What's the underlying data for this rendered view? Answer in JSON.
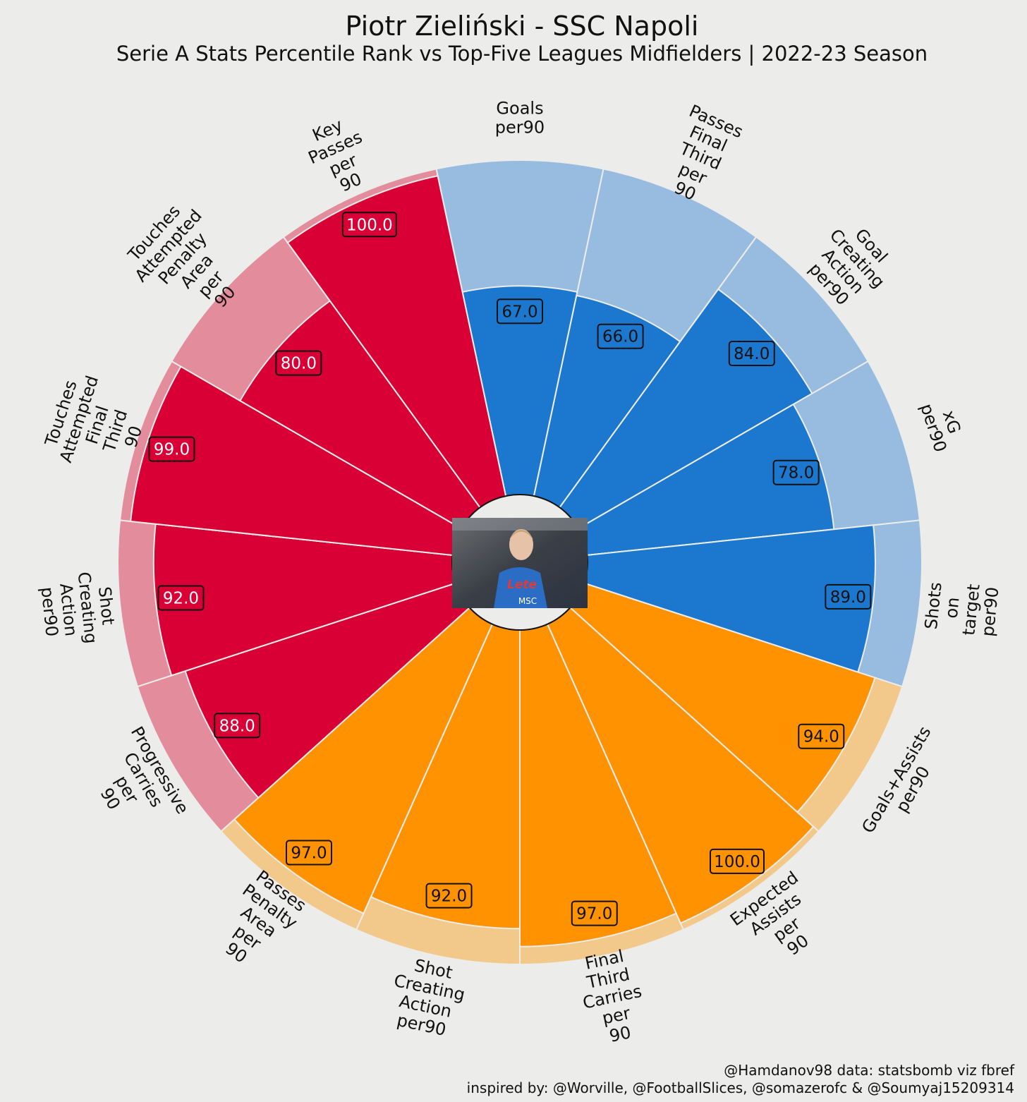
{
  "title": "Piotr Zieliński - SSC Napoli",
  "subtitle": "Serie A Stats Percentile Rank vs Top-Five Leagues  Midfielders | 2022-23 Season",
  "footer": {
    "line1": "@Hamdanov98 data: statsbomb viz fbref",
    "line2": "inspired by: @Worville, @FootballSlices, @somazerofc & @Soumyaj15209314"
  },
  "center_photo": {
    "description": "player-photo",
    "shirt_text": "Lete",
    "sponsor_text": "MSC"
  },
  "colors": {
    "background": "#ececea",
    "attacking": "#1b78ce",
    "attacking_light": "#97bcdf",
    "possession": "#d80034",
    "possession_light": "#e38c9c",
    "creation": "#ff9200",
    "creation_light": "#f2c98a"
  },
  "chart_data": {
    "type": "pizza",
    "max": 100,
    "slices": [
      {
        "label": "Goals\nper90",
        "value": 67.0,
        "value_text": "67.0",
        "group": "attacking"
      },
      {
        "label": "Passes\nFinal\nThird\nper\n90",
        "value": 66.0,
        "value_text": "66.0",
        "group": "attacking"
      },
      {
        "label": "Goal\nCreating\nAction\nper90",
        "value": 84.0,
        "value_text": "84.0",
        "group": "attacking"
      },
      {
        "label": "xG\nper90",
        "value": 78.0,
        "value_text": "78.0",
        "group": "attacking"
      },
      {
        "label": "Shots\non\ntarget\nper90",
        "value": 89.0,
        "value_text": "89.0",
        "group": "attacking"
      },
      {
        "label": "Goals+Assists\nper90",
        "value": 94.0,
        "value_text": "94.0",
        "group": "creation"
      },
      {
        "label": "Expected\nAssists\nper\n90",
        "value": 100.0,
        "value_text": "100.0",
        "group": "creation"
      },
      {
        "label": "Final\nThird\nCarries\nper\n90",
        "value": 97.0,
        "value_text": "97.0",
        "group": "creation"
      },
      {
        "label": "Shot\nCreating\nAction\nper90",
        "value": 92.0,
        "value_text": "92.0",
        "group": "creation"
      },
      {
        "label": "Passes\nPenalty\nArea\nper\n90",
        "value": 97.0,
        "value_text": "97.0",
        "group": "creation"
      },
      {
        "label": "Progressive\nCarries\nper\n90",
        "value": 88.0,
        "value_text": "88.0",
        "group": "possession"
      },
      {
        "label": "Shot\nCreating\nAction\nper90",
        "value": 92.0,
        "value_text": "92.0",
        "group": "possession"
      },
      {
        "label": "Touches\nAttempted\nFinal\nThird\n90",
        "value": 99.0,
        "value_text": "99.0",
        "group": "possession"
      },
      {
        "label": "Touches\nAttempted\nPenalty\nArea\nper\n90",
        "value": 80.0,
        "value_text": "80.0",
        "group": "possession"
      },
      {
        "label": "Key\nPasses\nper\n90",
        "value": 100.0,
        "value_text": "100.0",
        "group": "possession"
      }
    ]
  }
}
